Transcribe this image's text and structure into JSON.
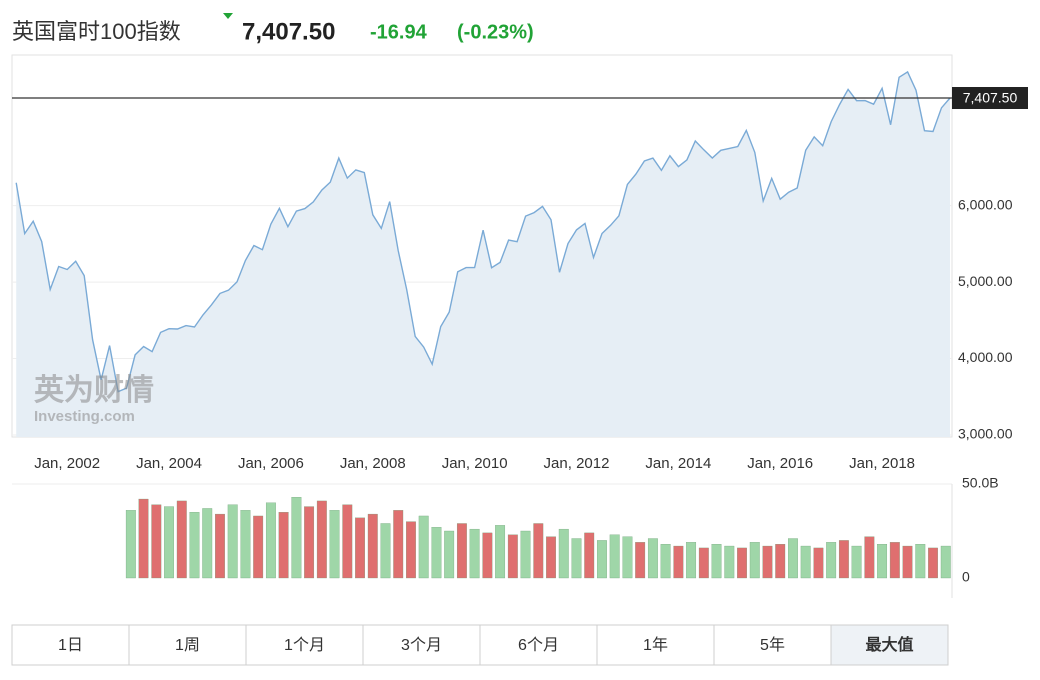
{
  "header": {
    "title": "英国富时100指数",
    "change": "-16.94",
    "change_pct": "(-0.23%)"
  },
  "chart_data": {
    "type": "area",
    "color": "#7aaad6",
    "fill": "#e6eef5",
    "grid": true,
    "xlim": [
      "2000-12",
      "2019-05"
    ],
    "ylim": [
      3000,
      7970
    ],
    "xticks": [
      {
        "value": "2002-01",
        "label": "Jan, 2002"
      },
      {
        "value": "2004-01",
        "label": "Jan, 2004"
      },
      {
        "value": "2006-01",
        "label": "Jan, 2006"
      },
      {
        "value": "2008-01",
        "label": "Jan, 2008"
      },
      {
        "value": "2010-01",
        "label": "Jan, 2010"
      },
      {
        "value": "2012-01",
        "label": "Jan, 2012"
      },
      {
        "value": "2014-01",
        "label": "Jan, 2014"
      },
      {
        "value": "2016-01",
        "label": "Jan, 2016"
      },
      {
        "value": "2018-01",
        "label": "Jan, 2018"
      }
    ],
    "yticks": [
      {
        "value": 3000,
        "label": "3,000.00"
      },
      {
        "value": 4000,
        "label": "4,000.00"
      },
      {
        "value": 5000,
        "label": "5,000.00"
      },
      {
        "value": 6000,
        "label": "6,000.00"
      }
    ],
    "last": {
      "value": 7407.5,
      "label": "7,407.50"
    },
    "x": [
      "2001-01",
      "2001-03",
      "2001-05",
      "2001-07",
      "2001-09",
      "2001-11",
      "2002-01",
      "2002-03",
      "2002-05",
      "2002-07",
      "2002-09",
      "2002-11",
      "2003-01",
      "2003-03",
      "2003-05",
      "2003-07",
      "2003-09",
      "2003-11",
      "2004-01",
      "2004-03",
      "2004-05",
      "2004-07",
      "2004-09",
      "2004-11",
      "2005-01",
      "2005-03",
      "2005-05",
      "2005-07",
      "2005-09",
      "2005-11",
      "2006-01",
      "2006-03",
      "2006-05",
      "2006-07",
      "2006-09",
      "2006-11",
      "2007-01",
      "2007-03",
      "2007-05",
      "2007-07",
      "2007-09",
      "2007-11",
      "2008-01",
      "2008-03",
      "2008-05",
      "2008-07",
      "2008-09",
      "2008-11",
      "2009-01",
      "2009-03",
      "2009-05",
      "2009-07",
      "2009-09",
      "2009-11",
      "2010-01",
      "2010-03",
      "2010-05",
      "2010-07",
      "2010-09",
      "2010-11",
      "2011-01",
      "2011-03",
      "2011-05",
      "2011-07",
      "2011-09",
      "2011-11",
      "2012-01",
      "2012-03",
      "2012-05",
      "2012-07",
      "2012-09",
      "2012-11",
      "2013-01",
      "2013-03",
      "2013-05",
      "2013-07",
      "2013-09",
      "2013-11",
      "2014-01",
      "2014-03",
      "2014-05",
      "2014-07",
      "2014-09",
      "2014-11",
      "2015-01",
      "2015-03",
      "2015-05",
      "2015-07",
      "2015-09",
      "2015-11",
      "2016-01",
      "2016-03",
      "2016-05",
      "2016-07",
      "2016-09",
      "2016-11",
      "2017-01",
      "2017-03",
      "2017-05",
      "2017-07",
      "2017-09",
      "2017-11",
      "2018-01",
      "2018-03",
      "2018-05",
      "2018-07",
      "2018-09",
      "2018-11",
      "2019-01",
      "2019-03",
      "2019-05"
    ],
    "values": [
      6298,
      5634,
      5796,
      5529,
      4903,
      5204,
      5164,
      5272,
      5085,
      4246,
      3722,
      4169,
      3567,
      3613,
      4048,
      4157,
      4091,
      4342,
      4390,
      4386,
      4431,
      4413,
      4571,
      4703,
      4852,
      4894,
      5002,
      5282,
      5478,
      5423,
      5760,
      5965,
      5724,
      5928,
      5961,
      6049,
      6203,
      6308,
      6621,
      6360,
      6467,
      6432,
      5880,
      5702,
      6053,
      5412,
      4902,
      4288,
      4149,
      3926,
      4418,
      4608,
      5134,
      5190,
      5189,
      5680,
      5188,
      5258,
      5549,
      5528,
      5863,
      5909,
      5990,
      5815,
      5128,
      5505,
      5682,
      5768,
      5321,
      5635,
      5742,
      5867,
      6277,
      6412,
      6583,
      6621,
      6462,
      6651,
      6510,
      6598,
      6845,
      6730,
      6623,
      6723,
      6749,
      6773,
      6984,
      6696,
      6061,
      6356,
      6084,
      6175,
      6231,
      6724,
      6899,
      6784,
      7099,
      7323,
      7520,
      7372,
      7373,
      7327,
      7534,
      7057,
      7678,
      7749,
      7510,
      6980,
      6969,
      7279,
      7407.5
    ],
    "volume": {
      "type": "bar",
      "ylim": [
        0,
        50000000000.0
      ],
      "yticks": [
        0,
        {
          "value": 50000000000.0,
          "label": "50.0B"
        }
      ],
      "x": [
        "2003-04",
        "2003-07",
        "2003-10",
        "2004-01",
        "2004-04",
        "2004-07",
        "2004-10",
        "2005-01",
        "2005-04",
        "2005-07",
        "2005-10",
        "2006-01",
        "2006-04",
        "2006-07",
        "2006-10",
        "2007-01",
        "2007-04",
        "2007-07",
        "2007-10",
        "2008-01",
        "2008-04",
        "2008-07",
        "2008-10",
        "2009-01",
        "2009-04",
        "2009-07",
        "2009-10",
        "2010-01",
        "2010-04",
        "2010-07",
        "2010-10",
        "2011-01",
        "2011-04",
        "2011-07",
        "2011-10",
        "2012-01",
        "2012-04",
        "2012-07",
        "2012-10",
        "2013-01",
        "2013-04",
        "2013-07",
        "2013-10",
        "2014-01",
        "2014-04",
        "2014-07",
        "2014-10",
        "2015-01",
        "2015-04",
        "2015-07",
        "2015-10",
        "2016-01",
        "2016-04",
        "2016-07",
        "2016-10",
        "2017-01",
        "2017-04",
        "2017-07",
        "2017-10",
        "2018-01",
        "2018-04",
        "2018-07",
        "2018-10",
        "2019-01",
        "2019-04"
      ],
      "values": [
        36000000000.0,
        42000000000.0,
        39000000000.0,
        38000000000.0,
        41000000000.0,
        35000000000.0,
        37000000000.0,
        34000000000.0,
        39000000000.0,
        36000000000.0,
        33000000000.0,
        40000000000.0,
        35000000000.0,
        43000000000.0,
        38000000000.0,
        41000000000.0,
        36000000000.0,
        39000000000.0,
        32000000000.0,
        34000000000.0,
        29000000000.0,
        36000000000.0,
        30000000000.0,
        33000000000.0,
        27000000000.0,
        25000000000.0,
        29000000000.0,
        26000000000.0,
        24000000000.0,
        28000000000.0,
        23000000000.0,
        25000000000.0,
        29000000000.0,
        22000000000.0,
        26000000000.0,
        21000000000.0,
        24000000000.0,
        20000000000.0,
        23000000000.0,
        22000000000.0,
        19000000000.0,
        21000000000.0,
        18000000000.0,
        17000000000.0,
        19000000000.0,
        16000000000.0,
        18000000000.0,
        17000000000.0,
        16000000000.0,
        19000000000.0,
        17000000000.0,
        18000000000.0,
        21000000000.0,
        17000000000.0,
        16000000000.0,
        19000000000.0,
        20000000000.0,
        17000000000.0,
        22000000000.0,
        18000000000.0,
        19000000000.0,
        17000000000.0,
        18000000000.0,
        16000000000.0,
        17000000000.0
      ],
      "colors": [
        "#9fd6a8",
        "#df6f6f",
        "#df6f6f",
        "#9fd6a8",
        "#df6f6f",
        "#9fd6a8",
        "#9fd6a8",
        "#df6f6f",
        "#9fd6a8",
        "#9fd6a8",
        "#df6f6f",
        "#9fd6a8",
        "#df6f6f",
        "#9fd6a8",
        "#df6f6f",
        "#df6f6f",
        "#9fd6a8",
        "#df6f6f",
        "#df6f6f",
        "#df6f6f",
        "#9fd6a8",
        "#df6f6f",
        "#df6f6f",
        "#9fd6a8",
        "#9fd6a8",
        "#9fd6a8",
        "#df6f6f",
        "#9fd6a8",
        "#df6f6f",
        "#9fd6a8",
        "#df6f6f",
        "#9fd6a8",
        "#df6f6f",
        "#df6f6f",
        "#9fd6a8",
        "#9fd6a8",
        "#df6f6f",
        "#9fd6a8",
        "#9fd6a8",
        "#9fd6a8",
        "#df6f6f",
        "#9fd6a8",
        "#9fd6a8",
        "#df6f6f",
        "#9fd6a8",
        "#df6f6f",
        "#9fd6a8",
        "#9fd6a8",
        "#df6f6f",
        "#9fd6a8",
        "#df6f6f",
        "#df6f6f",
        "#9fd6a8",
        "#9fd6a8",
        "#df6f6f",
        "#9fd6a8",
        "#df6f6f",
        "#9fd6a8",
        "#df6f6f",
        "#9fd6a8",
        "#df6f6f",
        "#df6f6f",
        "#9fd6a8",
        "#df6f6f",
        "#9fd6a8"
      ]
    }
  },
  "watermark": {
    "brand": "英为财情",
    "site": "Investing.com"
  },
  "range_buttons": [
    "1日",
    "1周",
    "1个月",
    "3个月",
    "6个月",
    "1年",
    "5年",
    "最大值"
  ],
  "selected_range": 7
}
